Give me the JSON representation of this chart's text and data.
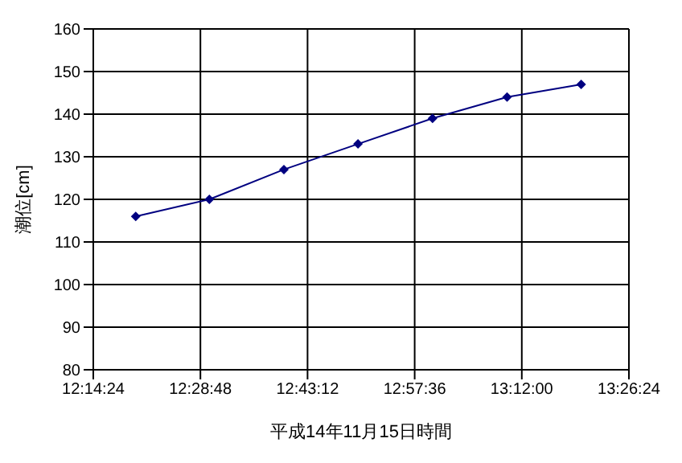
{
  "chart_data": {
    "type": "line",
    "xlabel": "平成14年11月15日時間",
    "ylabel": "潮位[cm]",
    "x": [
      12.335,
      12.5,
      12.667,
      12.833,
      13.0,
      13.167,
      13.333
    ],
    "series": [
      {
        "color": "#000080",
        "values": [
          116,
          120,
          127,
          133,
          139,
          144,
          147
        ]
      }
    ],
    "xlim": [
      12.24,
      13.44
    ],
    "xticks": [
      {
        "value": 12.24,
        "label": "12:14:24"
      },
      {
        "value": 12.48,
        "label": "12:28:48"
      },
      {
        "value": 12.72,
        "label": "12:43:12"
      },
      {
        "value": 12.96,
        "label": "12:57:36"
      },
      {
        "value": 13.2,
        "label": "13:12:00"
      },
      {
        "value": 13.44,
        "label": "13:26:24"
      }
    ],
    "ylim": [
      80,
      160
    ],
    "yticks": [
      80,
      90,
      100,
      110,
      120,
      130,
      140,
      150,
      160
    ],
    "grid": true,
    "marker": "diamond",
    "line_style": "solid"
  }
}
